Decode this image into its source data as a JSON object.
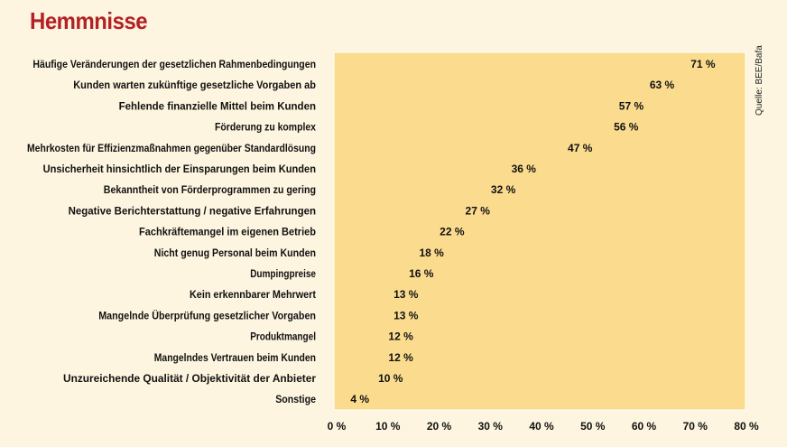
{
  "header": {
    "title": "Hemmnisse"
  },
  "source": "Quelle: BEE/Bafa",
  "colors": {
    "title": "#b32025",
    "page_bg": "#fdf5df",
    "plot_bg": "#fbdc8f",
    "text": "#111111"
  },
  "chart_data": {
    "type": "dot",
    "title": "Hemmnisse",
    "categories": [
      "Häufige Veränderungen der gesetzlichen Rahmenbedingungen",
      "Kunden warten zukünftige gesetzliche Vorgaben ab",
      "Fehlende finanzielle Mittel beim Kunden",
      "Förderung zu komplex",
      "Mehrkosten für Effizienzmaßnahmen gegenüber Standardlösung",
      "Unsicherheit hinsichtlich der Einsparungen beim Kunden",
      "Bekanntheit von Förderprogrammen zu gering",
      "Negative Berichterstattung / negative Erfahrungen",
      "Fachkräftemangel im eigenen Betrieb",
      "Nicht genug Personal beim Kunden",
      "Dumpingpreise",
      "Kein erkennbarer Mehrwert",
      "Mangelnde Überprüfung gesetzlicher Vorgaben",
      "Produktmangel",
      "Mangelndes Vertrauen beim Kunden",
      "Unzureichende Qualität / Objektivität der Anbieter",
      "Sonstige"
    ],
    "values": [
      71,
      63,
      57,
      56,
      47,
      36,
      32,
      27,
      22,
      18,
      16,
      13,
      13,
      12,
      12,
      10,
      4
    ],
    "value_labels": [
      "71 %",
      "63 %",
      "57 %",
      "56 %",
      "47 %",
      "36 %",
      "32 %",
      "27 %",
      "22 %",
      "18 %",
      "16 %",
      "13 %",
      "13 %",
      "12 %",
      "12 %",
      "10 %",
      "4 %"
    ],
    "x_ticks": [
      "0 %",
      "10 %",
      "20 %",
      "30 %",
      "40 %",
      "50 %",
      "60 %",
      "70 %",
      "80 %"
    ],
    "xlim": [
      0,
      80
    ],
    "grid": false,
    "legend": "none"
  }
}
